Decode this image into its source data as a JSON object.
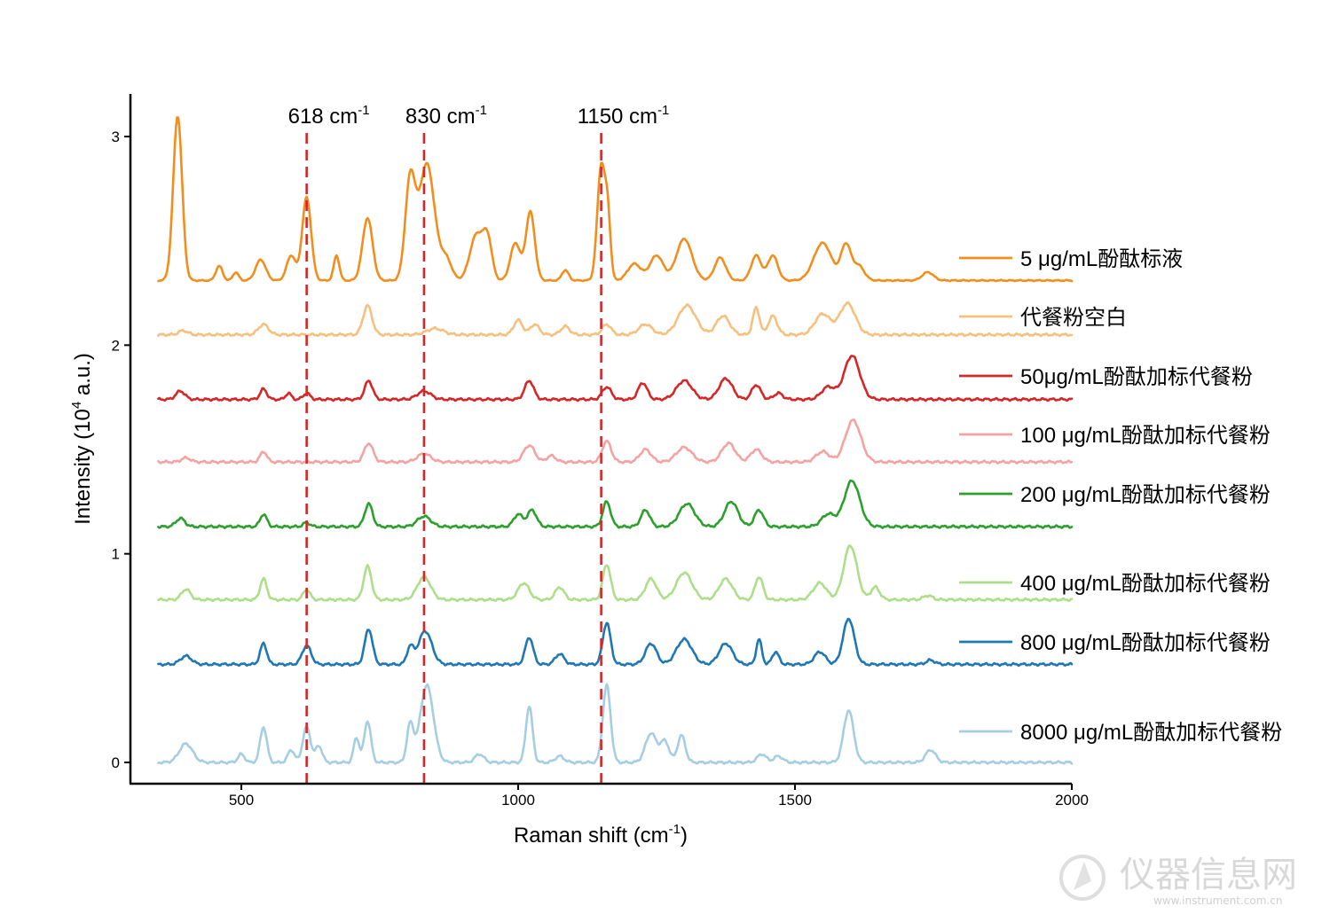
{
  "chart_data": {
    "type": "line",
    "title": "",
    "xlabel": "Raman shift (cm",
    "xlabel_sup": "-1",
    "xlabel_end": ")",
    "ylabel": "Intensity (10",
    "ylabel_sup": "4",
    "ylabel_end": " a.u.)",
    "xlim": [
      300,
      2000
    ],
    "ylim": [
      -0.1,
      3.2
    ],
    "xticks": [
      500,
      1000,
      1500,
      2000
    ],
    "xtick_labels": [
      "500",
      "1000",
      "1500",
      "2000"
    ],
    "yticks": [
      0,
      1,
      2,
      3
    ],
    "ytick_labels": [
      "0",
      "1",
      "2",
      "3"
    ],
    "grid": false,
    "legend_position": "right",
    "peak_markers": [
      {
        "x": 618,
        "label": "618 cm",
        "sup": "-1"
      },
      {
        "x": 830,
        "label": "830 cm",
        "sup": "-1"
      },
      {
        "x": 1150,
        "label": "1150 cm",
        "sup": "-1"
      }
    ],
    "peak_marker_color": "#d62728",
    "series": [
      {
        "name": "5 μg/mL酚酞标液",
        "color": "#f28e1e",
        "baseline": 2.31,
        "noise": 0.002,
        "peaks": [
          [
            385,
            0.79,
            8
          ],
          [
            460,
            0.07,
            6
          ],
          [
            490,
            0.04,
            5
          ],
          [
            535,
            0.1,
            9
          ],
          [
            590,
            0.12,
            8
          ],
          [
            618,
            0.4,
            8
          ],
          [
            672,
            0.12,
            5
          ],
          [
            728,
            0.3,
            9
          ],
          [
            805,
            0.47,
            9
          ],
          [
            835,
            0.56,
            14
          ],
          [
            870,
            0.1,
            10
          ],
          [
            925,
            0.22,
            12
          ],
          [
            945,
            0.18,
            8
          ],
          [
            995,
            0.18,
            9
          ],
          [
            1022,
            0.33,
            8
          ],
          [
            1085,
            0.05,
            6
          ],
          [
            1150,
            0.55,
            7
          ],
          [
            1162,
            0.28,
            5
          ],
          [
            1210,
            0.08,
            12
          ],
          [
            1250,
            0.12,
            12
          ],
          [
            1300,
            0.2,
            14
          ],
          [
            1365,
            0.11,
            10
          ],
          [
            1430,
            0.12,
            9
          ],
          [
            1460,
            0.12,
            9
          ],
          [
            1550,
            0.18,
            16
          ],
          [
            1592,
            0.17,
            9
          ],
          [
            1615,
            0.07,
            10
          ],
          [
            1740,
            0.04,
            10
          ]
        ]
      },
      {
        "name": "代餐粉空白",
        "color": "#f6c07e",
        "baseline": 2.05,
        "noise": 0.004,
        "peaks": [
          [
            395,
            0.02,
            8
          ],
          [
            540,
            0.05,
            9
          ],
          [
            728,
            0.14,
            8
          ],
          [
            850,
            0.03,
            15
          ],
          [
            1000,
            0.07,
            8
          ],
          [
            1030,
            0.05,
            8
          ],
          [
            1085,
            0.04,
            8
          ],
          [
            1160,
            0.05,
            8
          ],
          [
            1230,
            0.05,
            12
          ],
          [
            1305,
            0.14,
            16
          ],
          [
            1370,
            0.09,
            12
          ],
          [
            1430,
            0.13,
            6
          ],
          [
            1460,
            0.09,
            8
          ],
          [
            1550,
            0.1,
            14
          ],
          [
            1595,
            0.15,
            14
          ]
        ]
      },
      {
        "name": "50μg/mL酚酞加标代餐粉",
        "color": "#d62728",
        "baseline": 1.74,
        "noise": 0.004,
        "peaks": [
          [
            390,
            0.04,
            8
          ],
          [
            540,
            0.05,
            6
          ],
          [
            585,
            0.03,
            5
          ],
          [
            618,
            0.03,
            6
          ],
          [
            730,
            0.09,
            7
          ],
          [
            830,
            0.04,
            12
          ],
          [
            1020,
            0.09,
            8
          ],
          [
            1160,
            0.06,
            8
          ],
          [
            1225,
            0.08,
            8
          ],
          [
            1300,
            0.09,
            14
          ],
          [
            1375,
            0.1,
            12
          ],
          [
            1430,
            0.07,
            8
          ],
          [
            1470,
            0.03,
            8
          ],
          [
            1560,
            0.06,
            12
          ],
          [
            1603,
            0.21,
            14
          ]
        ]
      },
      {
        "name": "100 μg/mL酚酞加标代餐粉",
        "color": "#f4a3a3",
        "baseline": 1.44,
        "noise": 0.004,
        "peaks": [
          [
            400,
            0.02,
            8
          ],
          [
            540,
            0.05,
            6
          ],
          [
            730,
            0.09,
            8
          ],
          [
            830,
            0.04,
            12
          ],
          [
            1020,
            0.08,
            10
          ],
          [
            1060,
            0.03,
            8
          ],
          [
            1160,
            0.1,
            8
          ],
          [
            1230,
            0.06,
            10
          ],
          [
            1300,
            0.07,
            14
          ],
          [
            1380,
            0.09,
            12
          ],
          [
            1430,
            0.06,
            10
          ],
          [
            1550,
            0.05,
            12
          ],
          [
            1605,
            0.2,
            14
          ]
        ]
      },
      {
        "name": "200 μg/mL酚酞加标代餐粉",
        "color": "#2ca02c",
        "baseline": 1.13,
        "noise": 0.004,
        "peaks": [
          [
            390,
            0.04,
            8
          ],
          [
            540,
            0.06,
            6
          ],
          [
            618,
            0.02,
            6
          ],
          [
            730,
            0.11,
            7
          ],
          [
            830,
            0.05,
            12
          ],
          [
            1000,
            0.06,
            8
          ],
          [
            1025,
            0.08,
            8
          ],
          [
            1160,
            0.12,
            7
          ],
          [
            1230,
            0.08,
            8
          ],
          [
            1305,
            0.11,
            14
          ],
          [
            1385,
            0.12,
            12
          ],
          [
            1435,
            0.08,
            8
          ],
          [
            1560,
            0.06,
            12
          ],
          [
            1603,
            0.22,
            14
          ]
        ]
      },
      {
        "name": "400 μg/mL酚酞加标代餐粉",
        "color": "#addf8a",
        "baseline": 0.78,
        "noise": 0.004,
        "peaks": [
          [
            400,
            0.05,
            8
          ],
          [
            540,
            0.1,
            6
          ],
          [
            618,
            0.05,
            6
          ],
          [
            728,
            0.16,
            7
          ],
          [
            830,
            0.11,
            12
          ],
          [
            1010,
            0.08,
            10
          ],
          [
            1075,
            0.06,
            8
          ],
          [
            1160,
            0.17,
            7
          ],
          [
            1240,
            0.1,
            10
          ],
          [
            1300,
            0.13,
            14
          ],
          [
            1375,
            0.1,
            12
          ],
          [
            1435,
            0.11,
            7
          ],
          [
            1545,
            0.08,
            12
          ],
          [
            1600,
            0.26,
            12
          ],
          [
            1645,
            0.06,
            8
          ],
          [
            1740,
            0.02,
            8
          ]
        ]
      },
      {
        "name": "800 μg/mL酚酞加标代餐粉",
        "color": "#1f77b4",
        "baseline": 0.47,
        "noise": 0.004,
        "peaks": [
          [
            400,
            0.04,
            10
          ],
          [
            540,
            0.1,
            6
          ],
          [
            618,
            0.09,
            8
          ],
          [
            730,
            0.17,
            7
          ],
          [
            805,
            0.08,
            6
          ],
          [
            832,
            0.16,
            12
          ],
          [
            1020,
            0.13,
            7
          ],
          [
            1075,
            0.05,
            8
          ],
          [
            1160,
            0.2,
            7
          ],
          [
            1240,
            0.1,
            10
          ],
          [
            1300,
            0.12,
            14
          ],
          [
            1375,
            0.1,
            12
          ],
          [
            1435,
            0.12,
            5
          ],
          [
            1465,
            0.06,
            6
          ],
          [
            1545,
            0.06,
            10
          ],
          [
            1597,
            0.22,
            10
          ],
          [
            1745,
            0.02,
            8
          ]
        ]
      },
      {
        "name": "8000 μg/mL酚酞加标代餐粉",
        "color": "#a6cee3",
        "baseline": 0.0,
        "noise": 0.004,
        "peaks": [
          [
            400,
            0.09,
            12
          ],
          [
            500,
            0.04,
            6
          ],
          [
            540,
            0.17,
            6
          ],
          [
            590,
            0.06,
            6
          ],
          [
            618,
            0.17,
            7
          ],
          [
            640,
            0.08,
            6
          ],
          [
            708,
            0.12,
            5
          ],
          [
            728,
            0.2,
            6
          ],
          [
            805,
            0.18,
            6
          ],
          [
            835,
            0.37,
            12
          ],
          [
            930,
            0.04,
            8
          ],
          [
            1020,
            0.27,
            6
          ],
          [
            1075,
            0.03,
            8
          ],
          [
            1160,
            0.37,
            7
          ],
          [
            1240,
            0.14,
            10
          ],
          [
            1265,
            0.1,
            8
          ],
          [
            1295,
            0.13,
            7
          ],
          [
            1440,
            0.04,
            8
          ],
          [
            1470,
            0.03,
            8
          ],
          [
            1597,
            0.25,
            9
          ],
          [
            1745,
            0.06,
            9
          ]
        ]
      }
    ]
  },
  "watermark": {
    "text": "仪器信息网",
    "sub": "www.instrument.com.cn"
  }
}
